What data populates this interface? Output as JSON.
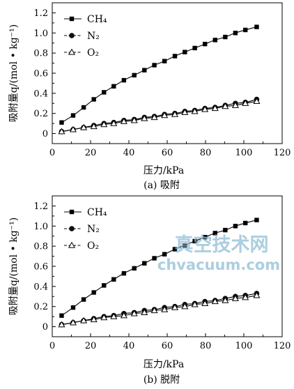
{
  "watermark": {
    "cn": "真空技术网",
    "en": "chvacuum.com",
    "color": "#8fbdd6"
  },
  "chart_data": [
    {
      "type": "line",
      "caption": "(a) 吸附",
      "xlabel": "压力/kPa",
      "ylabel": "吸附量q/(mol • kg⁻¹)",
      "xlim": [
        0,
        120
      ],
      "ylim": [
        -0.1,
        1.3
      ],
      "xticks": [
        0,
        20,
        40,
        60,
        80,
        100,
        120
      ],
      "yticks": [
        0,
        0.2,
        0.4,
        0.6,
        0.8,
        1.0,
        1.2
      ],
      "ytick_labels": [
        "0",
        "0.2",
        "0.4",
        "0.6",
        "0.8",
        "1.0",
        "1.2"
      ],
      "grid": false,
      "legend_position": "top-left",
      "x": [
        4.9,
        10.9,
        16.4,
        21.7,
        27.0,
        32.1,
        37.4,
        42.8,
        48.1,
        53.3,
        58.6,
        64.0,
        69.2,
        74.4,
        79.7,
        85.0,
        90.3,
        95.6,
        100.8,
        106.7
      ],
      "series": [
        {
          "name": "CH₄",
          "marker": "square",
          "values": [
            0.11,
            0.18,
            0.26,
            0.34,
            0.41,
            0.47,
            0.53,
            0.58,
            0.63,
            0.68,
            0.72,
            0.77,
            0.81,
            0.85,
            0.89,
            0.93,
            0.96,
            1.0,
            1.03,
            1.06
          ]
        },
        {
          "name": "N₂",
          "marker": "circle",
          "values": [
            0.02,
            0.04,
            0.06,
            0.08,
            0.1,
            0.11,
            0.13,
            0.14,
            0.16,
            0.17,
            0.19,
            0.2,
            0.22,
            0.23,
            0.25,
            0.26,
            0.28,
            0.3,
            0.31,
            0.34
          ]
        },
        {
          "name": "O₂",
          "marker": "triangle",
          "values": [
            0.02,
            0.04,
            0.06,
            0.07,
            0.09,
            0.1,
            0.12,
            0.13,
            0.15,
            0.16,
            0.18,
            0.19,
            0.21,
            0.22,
            0.24,
            0.25,
            0.27,
            0.28,
            0.3,
            0.32
          ]
        }
      ]
    },
    {
      "type": "line",
      "caption": "(b) 脱附",
      "xlabel": "压力/kPa",
      "ylabel": "吸附量q/(mol • kg⁻¹)",
      "xlim": [
        0,
        120
      ],
      "ylim": [
        -0.1,
        1.3
      ],
      "xticks": [
        0,
        20,
        40,
        60,
        80,
        100,
        120
      ],
      "yticks": [
        0,
        0.2,
        0.4,
        0.6,
        0.8,
        1.0,
        1.2
      ],
      "ytick_labels": [
        "0",
        "0.2",
        "0.4",
        "0.6",
        "0.8",
        "1.0",
        "1.2"
      ],
      "grid": false,
      "legend_position": "top-left",
      "x": [
        4.9,
        10.9,
        16.4,
        21.7,
        27.0,
        32.1,
        37.4,
        42.8,
        48.1,
        53.3,
        58.6,
        64.0,
        69.2,
        74.4,
        79.7,
        85.0,
        90.3,
        95.6,
        100.8,
        106.7
      ],
      "series": [
        {
          "name": "CH₄",
          "marker": "square",
          "values": [
            0.11,
            0.19,
            0.27,
            0.34,
            0.41,
            0.47,
            0.53,
            0.58,
            0.63,
            0.68,
            0.72,
            0.77,
            0.81,
            0.85,
            0.89,
            0.93,
            0.96,
            1.0,
            1.03,
            1.06
          ]
        },
        {
          "name": "N₂",
          "marker": "circle",
          "values": [
            0.02,
            0.04,
            0.06,
            0.08,
            0.1,
            0.11,
            0.13,
            0.14,
            0.16,
            0.17,
            0.19,
            0.2,
            0.22,
            0.23,
            0.25,
            0.26,
            0.28,
            0.3,
            0.31,
            0.33
          ]
        },
        {
          "name": "O₂",
          "marker": "triangle",
          "values": [
            0.02,
            0.04,
            0.06,
            0.07,
            0.09,
            0.1,
            0.11,
            0.13,
            0.14,
            0.16,
            0.17,
            0.19,
            0.2,
            0.22,
            0.23,
            0.25,
            0.26,
            0.28,
            0.29,
            0.31
          ]
        }
      ]
    }
  ]
}
